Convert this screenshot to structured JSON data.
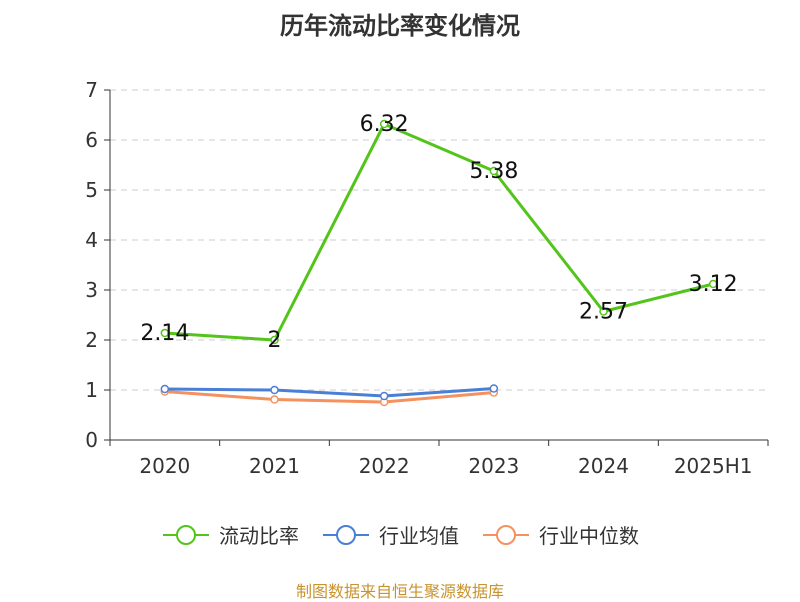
{
  "chart_data": {
    "type": "line",
    "title": "历年流动比率变化情况",
    "categories": [
      "2020",
      "2021",
      "2022",
      "2023",
      "2024",
      "2025H1"
    ],
    "ylim": [
      0,
      7
    ],
    "yticks": [
      0,
      1,
      2,
      3,
      4,
      5,
      6,
      7
    ],
    "grid": true,
    "legend_position": "bottom",
    "series": [
      {
        "name": "流动比率",
        "color": "#52c41a",
        "values": [
          2.14,
          2,
          6.32,
          5.38,
          2.57,
          3.12
        ],
        "labels": [
          "2.14",
          "2",
          "6.32",
          "5.38",
          "2.57",
          "3.12"
        ]
      },
      {
        "name": "行业均值",
        "color": "#4a7fd6",
        "values": [
          1.02,
          1.0,
          0.88,
          1.03,
          null,
          null
        ]
      },
      {
        "name": "行业中位数",
        "color": "#f5915f",
        "values": [
          0.97,
          0.81,
          0.76,
          0.95,
          null,
          null
        ]
      }
    ]
  },
  "footer": {
    "source": "制图数据来自恒生聚源数据库"
  }
}
